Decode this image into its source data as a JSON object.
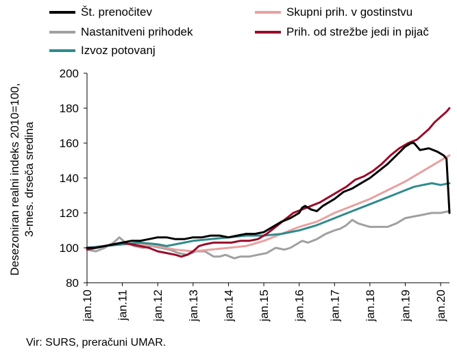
{
  "chart_data": {
    "type": "line",
    "x_start": "2010-01",
    "x_end": "2020-03",
    "ylabel": "Desezoniran realni indeks 2010=100, 3-mes. drseča sredina",
    "ylim": [
      80,
      200
    ],
    "yticks": [
      80,
      100,
      120,
      140,
      160,
      180,
      200
    ],
    "xtick_labels": [
      "jan.10",
      "jan.11",
      "jan.12",
      "jan.13",
      "jan.14",
      "jan.15",
      "jan.16",
      "jan.17",
      "jan.18",
      "jan.19",
      "jan.20"
    ],
    "grid": false,
    "legend_position": "top",
    "series": [
      {
        "name": "Št. prenočitev",
        "color": "#000000",
        "points": [
          [
            0,
            100
          ],
          [
            3,
            100
          ],
          [
            6,
            101
          ],
          [
            9,
            102
          ],
          [
            12,
            103
          ],
          [
            15,
            104
          ],
          [
            18,
            104
          ],
          [
            21,
            105
          ],
          [
            24,
            106
          ],
          [
            27,
            106
          ],
          [
            30,
            105
          ],
          [
            33,
            105
          ],
          [
            36,
            106
          ],
          [
            39,
            106
          ],
          [
            42,
            107
          ],
          [
            45,
            107
          ],
          [
            48,
            106
          ],
          [
            51,
            107
          ],
          [
            54,
            108
          ],
          [
            57,
            108
          ],
          [
            60,
            109
          ],
          [
            63,
            112
          ],
          [
            66,
            115
          ],
          [
            69,
            117
          ],
          [
            72,
            120
          ],
          [
            73,
            123
          ],
          [
            74,
            124
          ],
          [
            76,
            122
          ],
          [
            78,
            121
          ],
          [
            80,
            124
          ],
          [
            84,
            128
          ],
          [
            87,
            132
          ],
          [
            90,
            134
          ],
          [
            93,
            137
          ],
          [
            96,
            140
          ],
          [
            99,
            144
          ],
          [
            102,
            148
          ],
          [
            105,
            153
          ],
          [
            108,
            158
          ],
          [
            110,
            160
          ],
          [
            111,
            160
          ],
          [
            113,
            156
          ],
          [
            116,
            157
          ],
          [
            119,
            155
          ],
          [
            121,
            153
          ],
          [
            122,
            151
          ],
          [
            123,
            120
          ]
        ]
      },
      {
        "name": "Skupni prih. v gostinstvu",
        "color": "#e8a0a0",
        "points": [
          [
            0,
            100
          ],
          [
            6,
            101
          ],
          [
            12,
            102
          ],
          [
            18,
            102
          ],
          [
            24,
            101
          ],
          [
            30,
            99
          ],
          [
            36,
            98
          ],
          [
            42,
            99
          ],
          [
            48,
            100
          ],
          [
            54,
            101
          ],
          [
            60,
            104
          ],
          [
            66,
            108
          ],
          [
            72,
            112
          ],
          [
            78,
            115
          ],
          [
            84,
            120
          ],
          [
            90,
            124
          ],
          [
            96,
            128
          ],
          [
            102,
            133
          ],
          [
            108,
            138
          ],
          [
            114,
            144
          ],
          [
            118,
            148
          ],
          [
            121,
            151
          ],
          [
            123,
            153
          ]
        ]
      },
      {
        "name": "Nastanitveni prihodek",
        "color": "#a0a0a0",
        "points": [
          [
            0,
            99
          ],
          [
            3,
            98
          ],
          [
            6,
            100
          ],
          [
            9,
            103
          ],
          [
            11,
            106
          ],
          [
            13,
            103
          ],
          [
            16,
            101
          ],
          [
            19,
            100
          ],
          [
            22,
            101
          ],
          [
            25,
            100
          ],
          [
            28,
            99
          ],
          [
            31,
            97
          ],
          [
            34,
            96
          ],
          [
            37,
            98
          ],
          [
            40,
            98
          ],
          [
            43,
            95
          ],
          [
            45,
            95
          ],
          [
            47,
            96
          ],
          [
            50,
            94
          ],
          [
            52,
            95
          ],
          [
            55,
            95
          ],
          [
            58,
            96
          ],
          [
            61,
            97
          ],
          [
            64,
            100
          ],
          [
            67,
            99
          ],
          [
            69,
            100
          ],
          [
            71,
            102
          ],
          [
            73,
            104
          ],
          [
            75,
            103
          ],
          [
            78,
            105
          ],
          [
            81,
            108
          ],
          [
            84,
            110
          ],
          [
            86,
            111
          ],
          [
            88,
            113
          ],
          [
            90,
            116
          ],
          [
            92,
            114
          ],
          [
            94,
            113
          ],
          [
            96,
            112
          ],
          [
            99,
            112
          ],
          [
            102,
            112
          ],
          [
            105,
            114
          ],
          [
            108,
            117
          ],
          [
            111,
            118
          ],
          [
            114,
            119
          ],
          [
            117,
            120
          ],
          [
            120,
            120
          ],
          [
            123,
            121
          ]
        ]
      },
      {
        "name": "Prih. od strežbe jedi in pijač",
        "color": "#9b0a2a",
        "points": [
          [
            0,
            99
          ],
          [
            3,
            100
          ],
          [
            6,
            101
          ],
          [
            9,
            102
          ],
          [
            12,
            103
          ],
          [
            15,
            102
          ],
          [
            18,
            101
          ],
          [
            21,
            100
          ],
          [
            24,
            98
          ],
          [
            27,
            97
          ],
          [
            30,
            96
          ],
          [
            32,
            95
          ],
          [
            34,
            96
          ],
          [
            36,
            98
          ],
          [
            38,
            101
          ],
          [
            40,
            102
          ],
          [
            43,
            103
          ],
          [
            46,
            103
          ],
          [
            49,
            103
          ],
          [
            52,
            104
          ],
          [
            55,
            104
          ],
          [
            58,
            105
          ],
          [
            61,
            108
          ],
          [
            64,
            112
          ],
          [
            67,
            116
          ],
          [
            70,
            120
          ],
          [
            73,
            122
          ],
          [
            76,
            124
          ],
          [
            79,
            126
          ],
          [
            82,
            129
          ],
          [
            85,
            132
          ],
          [
            88,
            135
          ],
          [
            91,
            139
          ],
          [
            94,
            141
          ],
          [
            97,
            144
          ],
          [
            100,
            148
          ],
          [
            103,
            153
          ],
          [
            106,
            157
          ],
          [
            109,
            160
          ],
          [
            112,
            162
          ],
          [
            114,
            165
          ],
          [
            116,
            168
          ],
          [
            118,
            172
          ],
          [
            120,
            175
          ],
          [
            122,
            178
          ],
          [
            123,
            180
          ]
        ]
      },
      {
        "name": "Izvoz potovanj",
        "color": "#2e8b8b",
        "points": [
          [
            0,
            100
          ],
          [
            6,
            101
          ],
          [
            12,
            102
          ],
          [
            18,
            103
          ],
          [
            24,
            102
          ],
          [
            27,
            101
          ],
          [
            30,
            102
          ],
          [
            33,
            103
          ],
          [
            36,
            104
          ],
          [
            42,
            105
          ],
          [
            48,
            106
          ],
          [
            54,
            107
          ],
          [
            60,
            107
          ],
          [
            66,
            108
          ],
          [
            72,
            110
          ],
          [
            78,
            113
          ],
          [
            84,
            117
          ],
          [
            90,
            121
          ],
          [
            96,
            125
          ],
          [
            102,
            129
          ],
          [
            108,
            133
          ],
          [
            111,
            135
          ],
          [
            114,
            136
          ],
          [
            117,
            137
          ],
          [
            120,
            136
          ],
          [
            123,
            137
          ]
        ]
      }
    ]
  },
  "legend": {
    "item0": "Št. prenočitev",
    "item1": "Skupni prih. v gostinstvu",
    "item2": "Nastanitveni prihodek",
    "item3": "Prih. od strežbe jedi in pijač",
    "item4": "Izvoz potovanj"
  },
  "ylabel_line1": "Desezoniran realni indeks 2010=100,",
  "ylabel_line2": "3-mes. drseča sredina",
  "source": "Vir: SURS, preračuni UMAR."
}
